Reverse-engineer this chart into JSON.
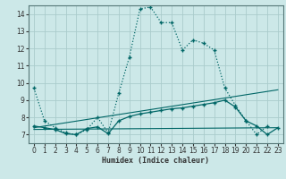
{
  "bg_color": "#cce8e8",
  "grid_color": "#aacccc",
  "line_color": "#006666",
  "xlabel": "Humidex (Indice chaleur)",
  "xlim": [
    -0.5,
    23.5
  ],
  "ylim": [
    6.5,
    14.5
  ],
  "yticks": [
    7,
    8,
    9,
    10,
    11,
    12,
    13,
    14
  ],
  "xticks": [
    0,
    1,
    2,
    3,
    4,
    5,
    6,
    7,
    8,
    9,
    10,
    11,
    12,
    13,
    14,
    15,
    16,
    17,
    18,
    19,
    20,
    21,
    22,
    23
  ],
  "line1_x": [
    0,
    1,
    2,
    3,
    4,
    5,
    6,
    7,
    8,
    9,
    10,
    11,
    12,
    13,
    14,
    15,
    16,
    17,
    18,
    19,
    20,
    21,
    22
  ],
  "line1_y": [
    9.7,
    7.8,
    7.4,
    7.1,
    7.0,
    7.3,
    8.0,
    7.1,
    9.4,
    11.5,
    14.3,
    14.4,
    13.5,
    13.5,
    11.9,
    12.5,
    12.3,
    11.9,
    9.7,
    8.7,
    7.8,
    7.0,
    7.5
  ],
  "line2_x": [
    0,
    1,
    2,
    3,
    4,
    5,
    6,
    7,
    8,
    9,
    10,
    11,
    12,
    13,
    14,
    15,
    16,
    17,
    18,
    19,
    20,
    21,
    22,
    23
  ],
  "line2_y": [
    7.5,
    7.4,
    7.3,
    7.05,
    7.0,
    7.35,
    7.45,
    7.05,
    7.8,
    8.05,
    8.2,
    8.3,
    8.4,
    8.5,
    8.55,
    8.65,
    8.75,
    8.85,
    9.0,
    8.6,
    7.8,
    7.5,
    7.0,
    7.4
  ],
  "line3_x": [
    0,
    23
  ],
  "line3_y": [
    7.4,
    9.6
  ],
  "line4_x": [
    0,
    23
  ],
  "line4_y": [
    7.3,
    7.4
  ]
}
